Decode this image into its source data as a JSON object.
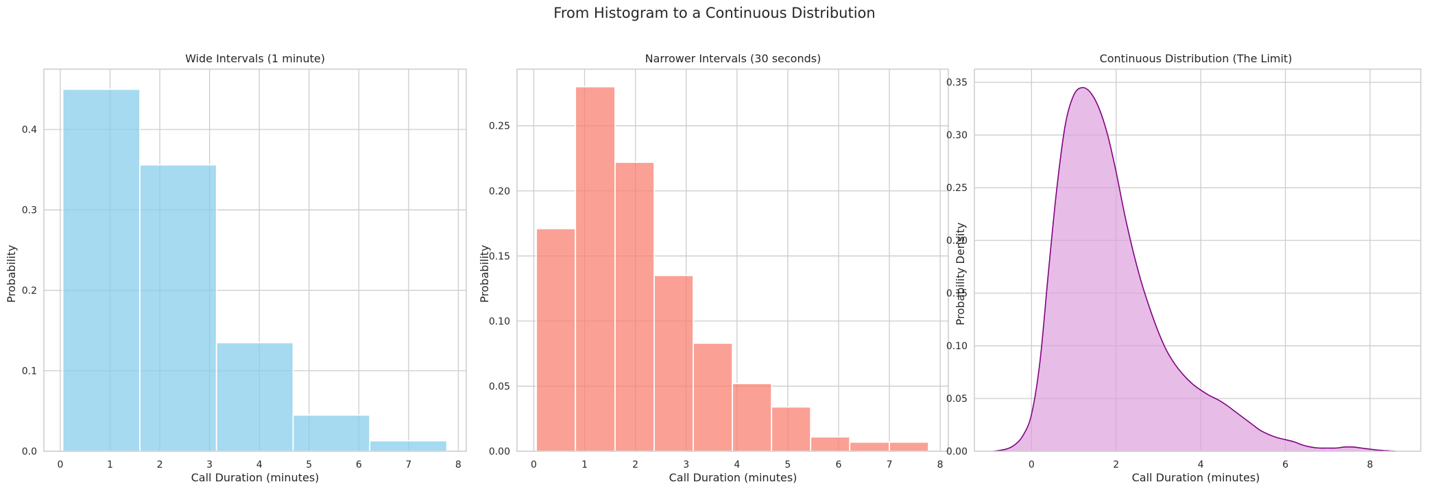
{
  "figure": {
    "title": "From Histogram to a Continuous Distribution"
  },
  "chart_data": [
    {
      "type": "bar",
      "title": "Wide Intervals (1 minute)",
      "xlabel": "Call Duration (minutes)",
      "ylabel": "Probability",
      "xlim": [
        -0.33,
        8.16
      ],
      "ylim": [
        0,
        0.475
      ],
      "xticks": [
        0,
        1,
        2,
        3,
        4,
        5,
        6,
        7,
        8
      ],
      "yticks": [
        0.0,
        0.1,
        0.2,
        0.3,
        0.4
      ],
      "ytick_labels": [
        "0.0",
        "0.1",
        "0.2",
        "0.3",
        "0.4"
      ],
      "color": "#87ceeb",
      "grid": true,
      "bins": [
        {
          "x0": 0.05,
          "x1": 1.6,
          "value": 0.45
        },
        {
          "x0": 1.6,
          "x1": 3.14,
          "value": 0.356
        },
        {
          "x0": 3.14,
          "x1": 4.68,
          "value": 0.135
        },
        {
          "x0": 4.68,
          "x1": 6.22,
          "value": 0.045
        },
        {
          "x0": 6.22,
          "x1": 7.77,
          "value": 0.013
        }
      ]
    },
    {
      "type": "bar",
      "title": "Narrower Intervals (30 seconds)",
      "xlabel": "Call Duration (minutes)",
      "ylabel": "Probability",
      "xlim": [
        -0.33,
        8.16
      ],
      "ylim": [
        0,
        0.2935
      ],
      "xticks": [
        0,
        1,
        2,
        3,
        4,
        5,
        6,
        7,
        8
      ],
      "yticks": [
        0.0,
        0.05,
        0.1,
        0.15,
        0.2,
        0.25
      ],
      "ytick_labels": [
        "0.00",
        "0.05",
        "0.10",
        "0.15",
        "0.20",
        "0.25"
      ],
      "color": "#fa8072",
      "grid": true,
      "bins": [
        {
          "x0": 0.05,
          "x1": 0.82,
          "value": 0.171
        },
        {
          "x0": 0.82,
          "x1": 1.6,
          "value": 0.28
        },
        {
          "x0": 1.6,
          "x1": 2.37,
          "value": 0.222
        },
        {
          "x0": 2.37,
          "x1": 3.14,
          "value": 0.135
        },
        {
          "x0": 3.14,
          "x1": 3.91,
          "value": 0.083
        },
        {
          "x0": 3.91,
          "x1": 4.68,
          "value": 0.052
        },
        {
          "x0": 4.68,
          "x1": 5.45,
          "value": 0.034
        },
        {
          "x0": 5.45,
          "x1": 6.22,
          "value": 0.011
        },
        {
          "x0": 6.22,
          "x1": 7.0,
          "value": 0.007
        },
        {
          "x0": 7.0,
          "x1": 7.77,
          "value": 0.007
        }
      ]
    },
    {
      "type": "area",
      "title": "Continuous Distribution (The Limit)",
      "xlabel": "Call Duration (minutes)",
      "ylabel": "Probability Density",
      "xlim": [
        -1.35,
        9.2
      ],
      "ylim": [
        0,
        0.3625
      ],
      "xticks": [
        0,
        2,
        4,
        6,
        8
      ],
      "yticks": [
        0.0,
        0.05,
        0.1,
        0.15,
        0.2,
        0.25,
        0.3,
        0.35
      ],
      "ytick_labels": [
        "0.00",
        "0.05",
        "0.10",
        "0.15",
        "0.20",
        "0.25",
        "0.30",
        "0.35"
      ],
      "line_color": "#800080",
      "fill_color": "#dda0dd",
      "grid": true,
      "x": [
        -0.9,
        -0.6,
        -0.4,
        -0.2,
        0.0,
        0.2,
        0.4,
        0.6,
        0.8,
        1.0,
        1.2,
        1.4,
        1.6,
        1.8,
        2.0,
        2.2,
        2.4,
        2.6,
        2.8,
        3.0,
        3.2,
        3.4,
        3.6,
        3.8,
        4.0,
        4.2,
        4.4,
        4.6,
        4.8,
        5.0,
        5.2,
        5.4,
        5.6,
        5.8,
        6.0,
        6.2,
        6.4,
        6.6,
        6.8,
        7.0,
        7.2,
        7.4,
        7.6,
        7.8,
        8.0,
        8.2,
        8.4,
        8.6
      ],
      "y": [
        0.0,
        0.002,
        0.006,
        0.015,
        0.035,
        0.085,
        0.17,
        0.25,
        0.31,
        0.338,
        0.345,
        0.34,
        0.325,
        0.3,
        0.265,
        0.225,
        0.19,
        0.16,
        0.135,
        0.113,
        0.095,
        0.082,
        0.072,
        0.064,
        0.058,
        0.053,
        0.049,
        0.044,
        0.038,
        0.032,
        0.026,
        0.02,
        0.016,
        0.013,
        0.011,
        0.009,
        0.006,
        0.004,
        0.003,
        0.003,
        0.003,
        0.004,
        0.004,
        0.003,
        0.002,
        0.001,
        0.0005,
        0.0
      ]
    }
  ]
}
